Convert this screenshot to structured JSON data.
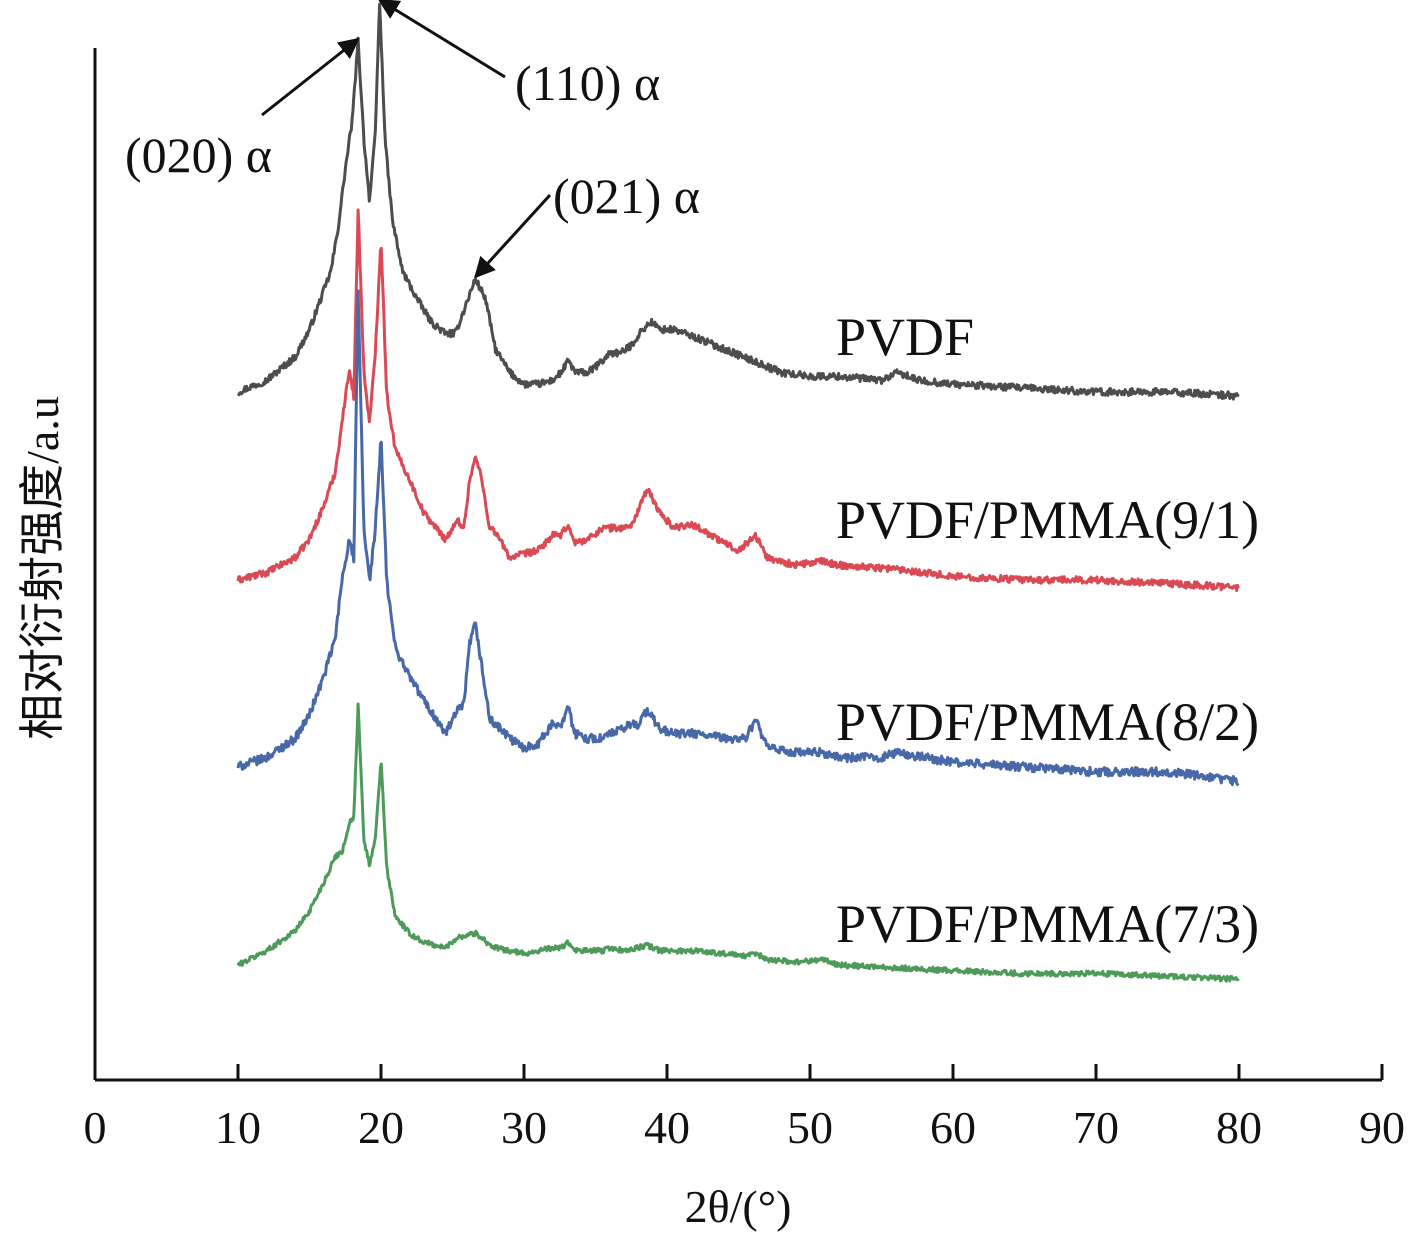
{
  "chart_data": {
    "type": "line",
    "xlabel": "2θ/(°)",
    "ylabel": "相对衍射强度/a.u",
    "xlim": [
      0,
      90
    ],
    "xticks": [
      0,
      10,
      20,
      30,
      40,
      50,
      60,
      70,
      80,
      90
    ],
    "yticks": false,
    "grid": false,
    "legend": "inline labels at right of each curve",
    "y_units": "arbitrary (stacked, offset curves)",
    "series": [
      {
        "name": "PVDF",
        "color": "#4d4d4d",
        "x": [
          10,
          12,
          14,
          15,
          16,
          16.5,
          17,
          17.5,
          18,
          18.4,
          18.8,
          19.2,
          19.6,
          19.9,
          20.3,
          20.8,
          21.5,
          22.5,
          23.5,
          24.5,
          25.2,
          26,
          26.6,
          27.3,
          28,
          29,
          30,
          31,
          32,
          32.6,
          33.1,
          33.6,
          34.5,
          35.5,
          36,
          36.8,
          37.5,
          38.3,
          38.9,
          39.5,
          40.5,
          42,
          44,
          46,
          48,
          50,
          52,
          55,
          56.2,
          57.5,
          60,
          65,
          70,
          75,
          80
        ],
        "values": [
          0.0,
          0.03,
          0.09,
          0.16,
          0.26,
          0.31,
          0.42,
          0.57,
          0.7,
          0.9,
          0.65,
          0.49,
          0.66,
          1.0,
          0.64,
          0.44,
          0.31,
          0.24,
          0.18,
          0.15,
          0.15,
          0.23,
          0.29,
          0.24,
          0.11,
          0.05,
          0.02,
          0.02,
          0.03,
          0.05,
          0.08,
          0.05,
          0.05,
          0.08,
          0.1,
          0.1,
          0.12,
          0.16,
          0.18,
          0.16,
          0.16,
          0.14,
          0.11,
          0.08,
          0.05,
          0.04,
          0.04,
          0.03,
          0.05,
          0.03,
          0.02,
          0.01,
          0.0,
          0.0,
          -0.01
        ]
      },
      {
        "name": "PVDF/PMMA(9/1)",
        "color": "#d94a55",
        "x": [
          10,
          12,
          14,
          15,
          16,
          16.8,
          17.4,
          17.8,
          18.1,
          18.4,
          18.8,
          19.2,
          19.6,
          20,
          20.4,
          21,
          22,
          23,
          24.5,
          25.4,
          25.8,
          26.2,
          26.6,
          27,
          27.6,
          28,
          29,
          30,
          31,
          32,
          32.6,
          33.1,
          33.5,
          34.5,
          35.5,
          36,
          37,
          37.6,
          38.3,
          38.7,
          39.5,
          40.5,
          41.5,
          42.3,
          43.5,
          45,
          46.2,
          47,
          49,
          50.8,
          52,
          56,
          60,
          65,
          70,
          75,
          80
        ],
        "values": [
          0.0,
          0.02,
          0.06,
          0.11,
          0.2,
          0.29,
          0.46,
          0.57,
          0.49,
          1.0,
          0.56,
          0.42,
          0.61,
          0.92,
          0.5,
          0.35,
          0.27,
          0.18,
          0.11,
          0.16,
          0.14,
          0.27,
          0.33,
          0.28,
          0.14,
          0.13,
          0.06,
          0.07,
          0.08,
          0.12,
          0.12,
          0.15,
          0.1,
          0.11,
          0.14,
          0.14,
          0.14,
          0.15,
          0.22,
          0.24,
          0.18,
          0.14,
          0.15,
          0.14,
          0.11,
          0.08,
          0.12,
          0.06,
          0.04,
          0.05,
          0.04,
          0.03,
          0.01,
          0.0,
          0.0,
          -0.01,
          -0.02
        ]
      },
      {
        "name": "PVDF/PMMA(8/2)",
        "color": "#4868a8",
        "x": [
          10,
          12,
          14,
          15,
          16,
          16.8,
          17.3,
          17.8,
          18.1,
          18.4,
          18.8,
          19.2,
          19.6,
          20,
          20.4,
          21,
          22,
          23,
          24.5,
          25.4,
          25.8,
          26.2,
          26.6,
          27,
          27.6,
          28,
          29,
          30,
          31,
          32,
          32.6,
          33.1,
          33.5,
          34.5,
          35.5,
          36,
          37,
          37.4,
          38,
          38.6,
          39.5,
          40.5,
          42,
          44,
          45.5,
          46.2,
          47,
          49,
          50.8,
          52,
          55,
          56,
          60,
          65,
          70,
          75,
          80
        ],
        "values": [
          0.0,
          0.02,
          0.06,
          0.11,
          0.19,
          0.27,
          0.4,
          0.48,
          0.43,
          1.0,
          0.5,
          0.39,
          0.5,
          0.69,
          0.39,
          0.25,
          0.19,
          0.14,
          0.07,
          0.12,
          0.13,
          0.26,
          0.3,
          0.22,
          0.1,
          0.09,
          0.06,
          0.04,
          0.05,
          0.09,
          0.09,
          0.13,
          0.07,
          0.06,
          0.06,
          0.07,
          0.08,
          0.09,
          0.09,
          0.12,
          0.08,
          0.07,
          0.07,
          0.06,
          0.06,
          0.1,
          0.04,
          0.03,
          0.03,
          0.02,
          0.02,
          0.03,
          0.01,
          0.0,
          -0.01,
          -0.01,
          -0.03
        ]
      },
      {
        "name": "PVDF/PMMA(7/3)",
        "color": "#4e9a5a",
        "x": [
          10,
          12,
          14,
          15,
          16,
          16.8,
          17.3,
          17.8,
          18.1,
          18.4,
          18.8,
          19.2,
          19.6,
          20,
          20.4,
          21,
          22,
          23,
          24.5,
          25.4,
          25.8,
          26.2,
          26.6,
          27,
          27.6,
          28,
          29,
          30,
          31,
          32,
          32.6,
          33.1,
          33.5,
          34.5,
          35.5,
          36,
          37,
          38,
          38.6,
          39.5,
          40.5,
          42,
          44,
          45.5,
          46.2,
          47,
          49,
          50.8,
          52,
          56,
          60,
          65,
          70,
          75,
          80
        ],
        "values": [
          0.0,
          0.05,
          0.12,
          0.19,
          0.29,
          0.38,
          0.4,
          0.5,
          0.52,
          0.91,
          0.44,
          0.35,
          0.44,
          0.72,
          0.34,
          0.17,
          0.11,
          0.08,
          0.06,
          0.1,
          0.1,
          0.11,
          0.11,
          0.1,
          0.07,
          0.06,
          0.05,
          0.04,
          0.05,
          0.06,
          0.06,
          0.08,
          0.05,
          0.05,
          0.05,
          0.06,
          0.05,
          0.06,
          0.07,
          0.05,
          0.05,
          0.05,
          0.04,
          0.03,
          0.04,
          0.02,
          0.01,
          0.02,
          0.0,
          -0.01,
          -0.02,
          -0.03,
          -0.03,
          -0.04,
          -0.05
        ]
      }
    ],
    "annotations": [
      {
        "label": "(020) α",
        "x": 18.4,
        "series": "PVDF"
      },
      {
        "label": "(110) α",
        "x": 19.9,
        "series": "PVDF"
      },
      {
        "label": "(021) α",
        "x": 26.6,
        "series": "PVDF"
      }
    ]
  }
}
